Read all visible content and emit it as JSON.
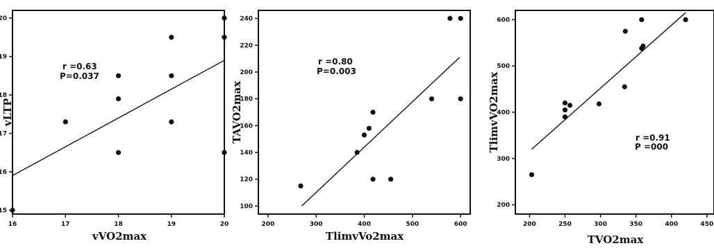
{
  "chart_data": [
    {
      "type": "scatter",
      "title": "",
      "xlabel": "vVO2max",
      "ylabel": "vLTP",
      "x_ticks": [
        "16",
        "17",
        "18",
        "19",
        "20"
      ],
      "y_ticks": [
        "15",
        "16",
        "17",
        "18",
        "19",
        "20"
      ],
      "xlim": [
        16,
        20
      ],
      "ylim": [
        14.9,
        20.2
      ],
      "points": [
        {
          "x": 16,
          "y": 15
        },
        {
          "x": 17,
          "y": 17.3
        },
        {
          "x": 18,
          "y": 16.5
        },
        {
          "x": 18,
          "y": 17.9
        },
        {
          "x": 18,
          "y": 18.5
        },
        {
          "x": 19,
          "y": 17.3
        },
        {
          "x": 19,
          "y": 18.5
        },
        {
          "x": 19,
          "y": 19.5
        },
        {
          "x": 20,
          "y": 16.5
        },
        {
          "x": 20,
          "y": 19.5
        },
        {
          "x": 20,
          "y": 20
        }
      ],
      "fit_line": {
        "x1": 16,
        "y1": 15.9,
        "x2": 20,
        "y2": 18.9
      },
      "annotation": [
        "r =0.63",
        "P=0.037"
      ],
      "grid": false
    },
    {
      "type": "scatter",
      "title": "",
      "xlabel": "TlimvVo2max",
      "ylabel": "TAVO2max",
      "x_ticks": [
        "200",
        "300",
        "400",
        "500",
        "600"
      ],
      "y_ticks": [
        "100",
        "120",
        "140",
        "160",
        "180",
        "200",
        "220",
        "240"
      ],
      "xlim": [
        180,
        620
      ],
      "ylim": [
        94,
        246
      ],
      "points": [
        {
          "x": 268,
          "y": 115
        },
        {
          "x": 385,
          "y": 140
        },
        {
          "x": 400,
          "y": 153
        },
        {
          "x": 410,
          "y": 158
        },
        {
          "x": 418,
          "y": 170
        },
        {
          "x": 418,
          "y": 120
        },
        {
          "x": 455,
          "y": 120
        },
        {
          "x": 540,
          "y": 180
        },
        {
          "x": 578,
          "y": 240
        },
        {
          "x": 600,
          "y": 240
        },
        {
          "x": 600,
          "y": 180
        }
      ],
      "fit_line": {
        "x1": 270,
        "y1": 100,
        "x2": 598,
        "y2": 211
      },
      "annotation": [
        "r =0.80",
        "P=0.003"
      ],
      "grid": false
    },
    {
      "type": "scatter",
      "title": "",
      "xlabel": "TVO2max",
      "ylabel": "TlimvVO2max",
      "x_ticks": [
        "200",
        "250",
        "300",
        "350",
        "400",
        "450"
      ],
      "y_ticks": [
        "200",
        "300",
        "400",
        "500",
        "600"
      ],
      "xlim": [
        180,
        460
      ],
      "ylim": [
        180,
        620
      ],
      "points": [
        {
          "x": 203,
          "y": 265
        },
        {
          "x": 250,
          "y": 390
        },
        {
          "x": 250,
          "y": 405
        },
        {
          "x": 250,
          "y": 420
        },
        {
          "x": 257,
          "y": 415
        },
        {
          "x": 298,
          "y": 418
        },
        {
          "x": 334,
          "y": 455
        },
        {
          "x": 335,
          "y": 575
        },
        {
          "x": 358,
          "y": 600
        },
        {
          "x": 358,
          "y": 538
        },
        {
          "x": 360,
          "y": 543
        },
        {
          "x": 420,
          "y": 600
        }
      ],
      "fit_line": {
        "x1": 203,
        "y1": 320,
        "x2": 420,
        "y2": 615
      },
      "annotation": [
        "r =0.91",
        "P =000"
      ],
      "grid": false
    }
  ]
}
